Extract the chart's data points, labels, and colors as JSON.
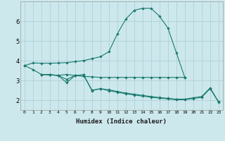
{
  "bg_color": "#cce8ec",
  "grid_color": "#b0d0d8",
  "line_color": "#1a7a6e",
  "xlabel": "Humidex (Indice chaleur)",
  "xlim": [
    -0.5,
    23.5
  ],
  "ylim": [
    1.5,
    7.0
  ],
  "yticks": [
    2,
    3,
    4,
    5,
    6
  ],
  "xticks": [
    0,
    1,
    2,
    3,
    4,
    5,
    6,
    7,
    8,
    9,
    10,
    11,
    12,
    13,
    14,
    15,
    16,
    17,
    18,
    19,
    20,
    21,
    22,
    23
  ],
  "line1_x": [
    0,
    1,
    2,
    3,
    4,
    5,
    6,
    7,
    8,
    9,
    10,
    11,
    12,
    13,
    14,
    15,
    16,
    17,
    18,
    19
  ],
  "line1_y": [
    3.75,
    3.88,
    3.87,
    3.87,
    3.88,
    3.9,
    3.95,
    4.0,
    4.1,
    4.2,
    4.45,
    5.35,
    6.1,
    6.55,
    6.65,
    6.65,
    6.25,
    5.65,
    4.4,
    3.15
  ],
  "line2_x": [
    0,
    1,
    2,
    3,
    4,
    5,
    6,
    7,
    8,
    9,
    10,
    11,
    12,
    13,
    14,
    15,
    16,
    17,
    18,
    19
  ],
  "line2_y": [
    3.75,
    3.55,
    3.3,
    3.3,
    3.25,
    3.3,
    3.25,
    3.2,
    3.18,
    3.15,
    3.15,
    3.15,
    3.15,
    3.15,
    3.15,
    3.15,
    3.15,
    3.15,
    3.15,
    3.15
  ],
  "line3_x": [
    2,
    3,
    4,
    5,
    6,
    7,
    8,
    9,
    10,
    11,
    12,
    13,
    14,
    15,
    16,
    17,
    18,
    19,
    20,
    21,
    22,
    23
  ],
  "line3_y": [
    3.3,
    3.28,
    3.25,
    3.05,
    3.25,
    3.28,
    2.5,
    2.58,
    2.52,
    2.44,
    2.36,
    2.3,
    2.24,
    2.18,
    2.13,
    2.09,
    2.05,
    2.05,
    2.12,
    2.18,
    2.62,
    1.92
  ],
  "line4_x": [
    2,
    3,
    4,
    5,
    6,
    7,
    8,
    9,
    10,
    11,
    12,
    13,
    14,
    15,
    16,
    17,
    18,
    19,
    20,
    21,
    22,
    23
  ],
  "line4_y": [
    3.3,
    3.28,
    3.25,
    2.88,
    3.25,
    3.28,
    2.48,
    2.58,
    2.48,
    2.4,
    2.32,
    2.26,
    2.2,
    2.15,
    2.1,
    2.06,
    2.02,
    2.02,
    2.08,
    2.14,
    2.58,
    1.9
  ]
}
